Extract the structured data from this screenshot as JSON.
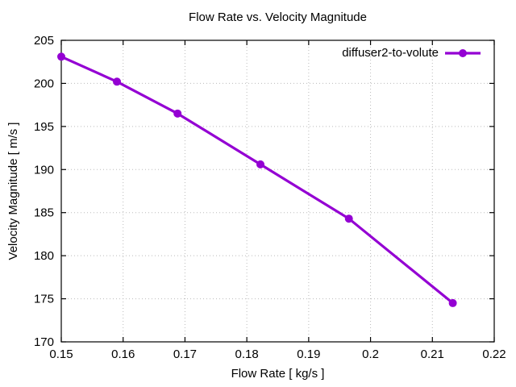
{
  "chart_data": {
    "type": "line",
    "title": "Flow Rate vs. Velocity Magnitude",
    "xlabel": "Flow Rate [ kg/s ]",
    "ylabel": "Velocity Magnitude [ m/s ]",
    "xlim": [
      0.15,
      0.22
    ],
    "ylim": [
      170,
      205
    ],
    "xticks": [
      0.15,
      0.16,
      0.17,
      0.18,
      0.19,
      0.2,
      0.21,
      0.22
    ],
    "xtick_labels": [
      "0.15",
      "0.16",
      "0.17",
      "0.18",
      "0.19",
      "0.2",
      "0.21",
      "0.22"
    ],
    "yticks": [
      170,
      175,
      180,
      185,
      190,
      195,
      200,
      205
    ],
    "ytick_labels": [
      "170",
      "175",
      "180",
      "185",
      "190",
      "195",
      "200",
      "205"
    ],
    "grid": true,
    "legend_position": "top-right-inside",
    "series": [
      {
        "name": "diffuser2-to-volute",
        "color": "#9400d3",
        "marker": "circle",
        "x": [
          0.15,
          0.159,
          0.1688,
          0.1822,
          0.1965,
          0.2133
        ],
        "y": [
          203.1,
          200.2,
          196.5,
          190.6,
          184.3,
          174.5
        ]
      }
    ]
  },
  "colors": {
    "background": "#ffffff",
    "text": "#000000",
    "axis": "#000000",
    "grid": "#bbbbbb",
    "line": "#9400d3"
  }
}
